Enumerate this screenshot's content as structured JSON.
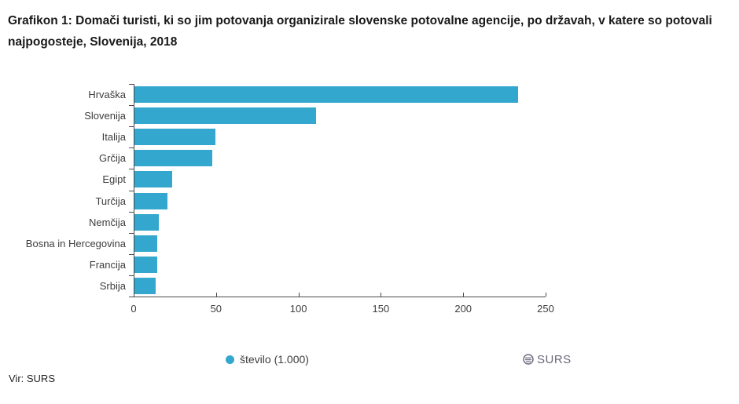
{
  "title": "Grafikon 1: Domači turisti, ki so jim potovanja organizirale slovenske potovalne agencije, po državah, v katere so potovali najpogosteje, Slovenija, 2018",
  "source": "Vir: SURS",
  "watermark": "SURS",
  "legend": {
    "label": "število (1.000)"
  },
  "colors": {
    "bar": "#33A7CD",
    "axis": "#4a4a4a",
    "text": "#3d3d3d",
    "watermark": "#68687a"
  },
  "chart_data": {
    "type": "bar",
    "orientation": "horizontal",
    "title": "Grafikon 1: Domači turisti, ki so jim potovanja organizirale slovenske potovalne agencije, po državah, v katere so potovali najpogosteje, Slovenija, 2018",
    "categories": [
      "Hrvaška",
      "Slovenija",
      "Italija",
      "Grčija",
      "Egipt",
      "Turčija",
      "Nemčija",
      "Bosna in Hercegovina",
      "Francija",
      "Srbija"
    ],
    "values": [
      233,
      110,
      49,
      47,
      23,
      20,
      15,
      14,
      14,
      13
    ],
    "series_name": "število (1.000)",
    "xlabel": "",
    "ylabel": "",
    "xlim": [
      0,
      250
    ],
    "xticks": [
      0,
      50,
      100,
      150,
      200,
      250
    ],
    "grid": false,
    "legend_position": "bottom"
  }
}
